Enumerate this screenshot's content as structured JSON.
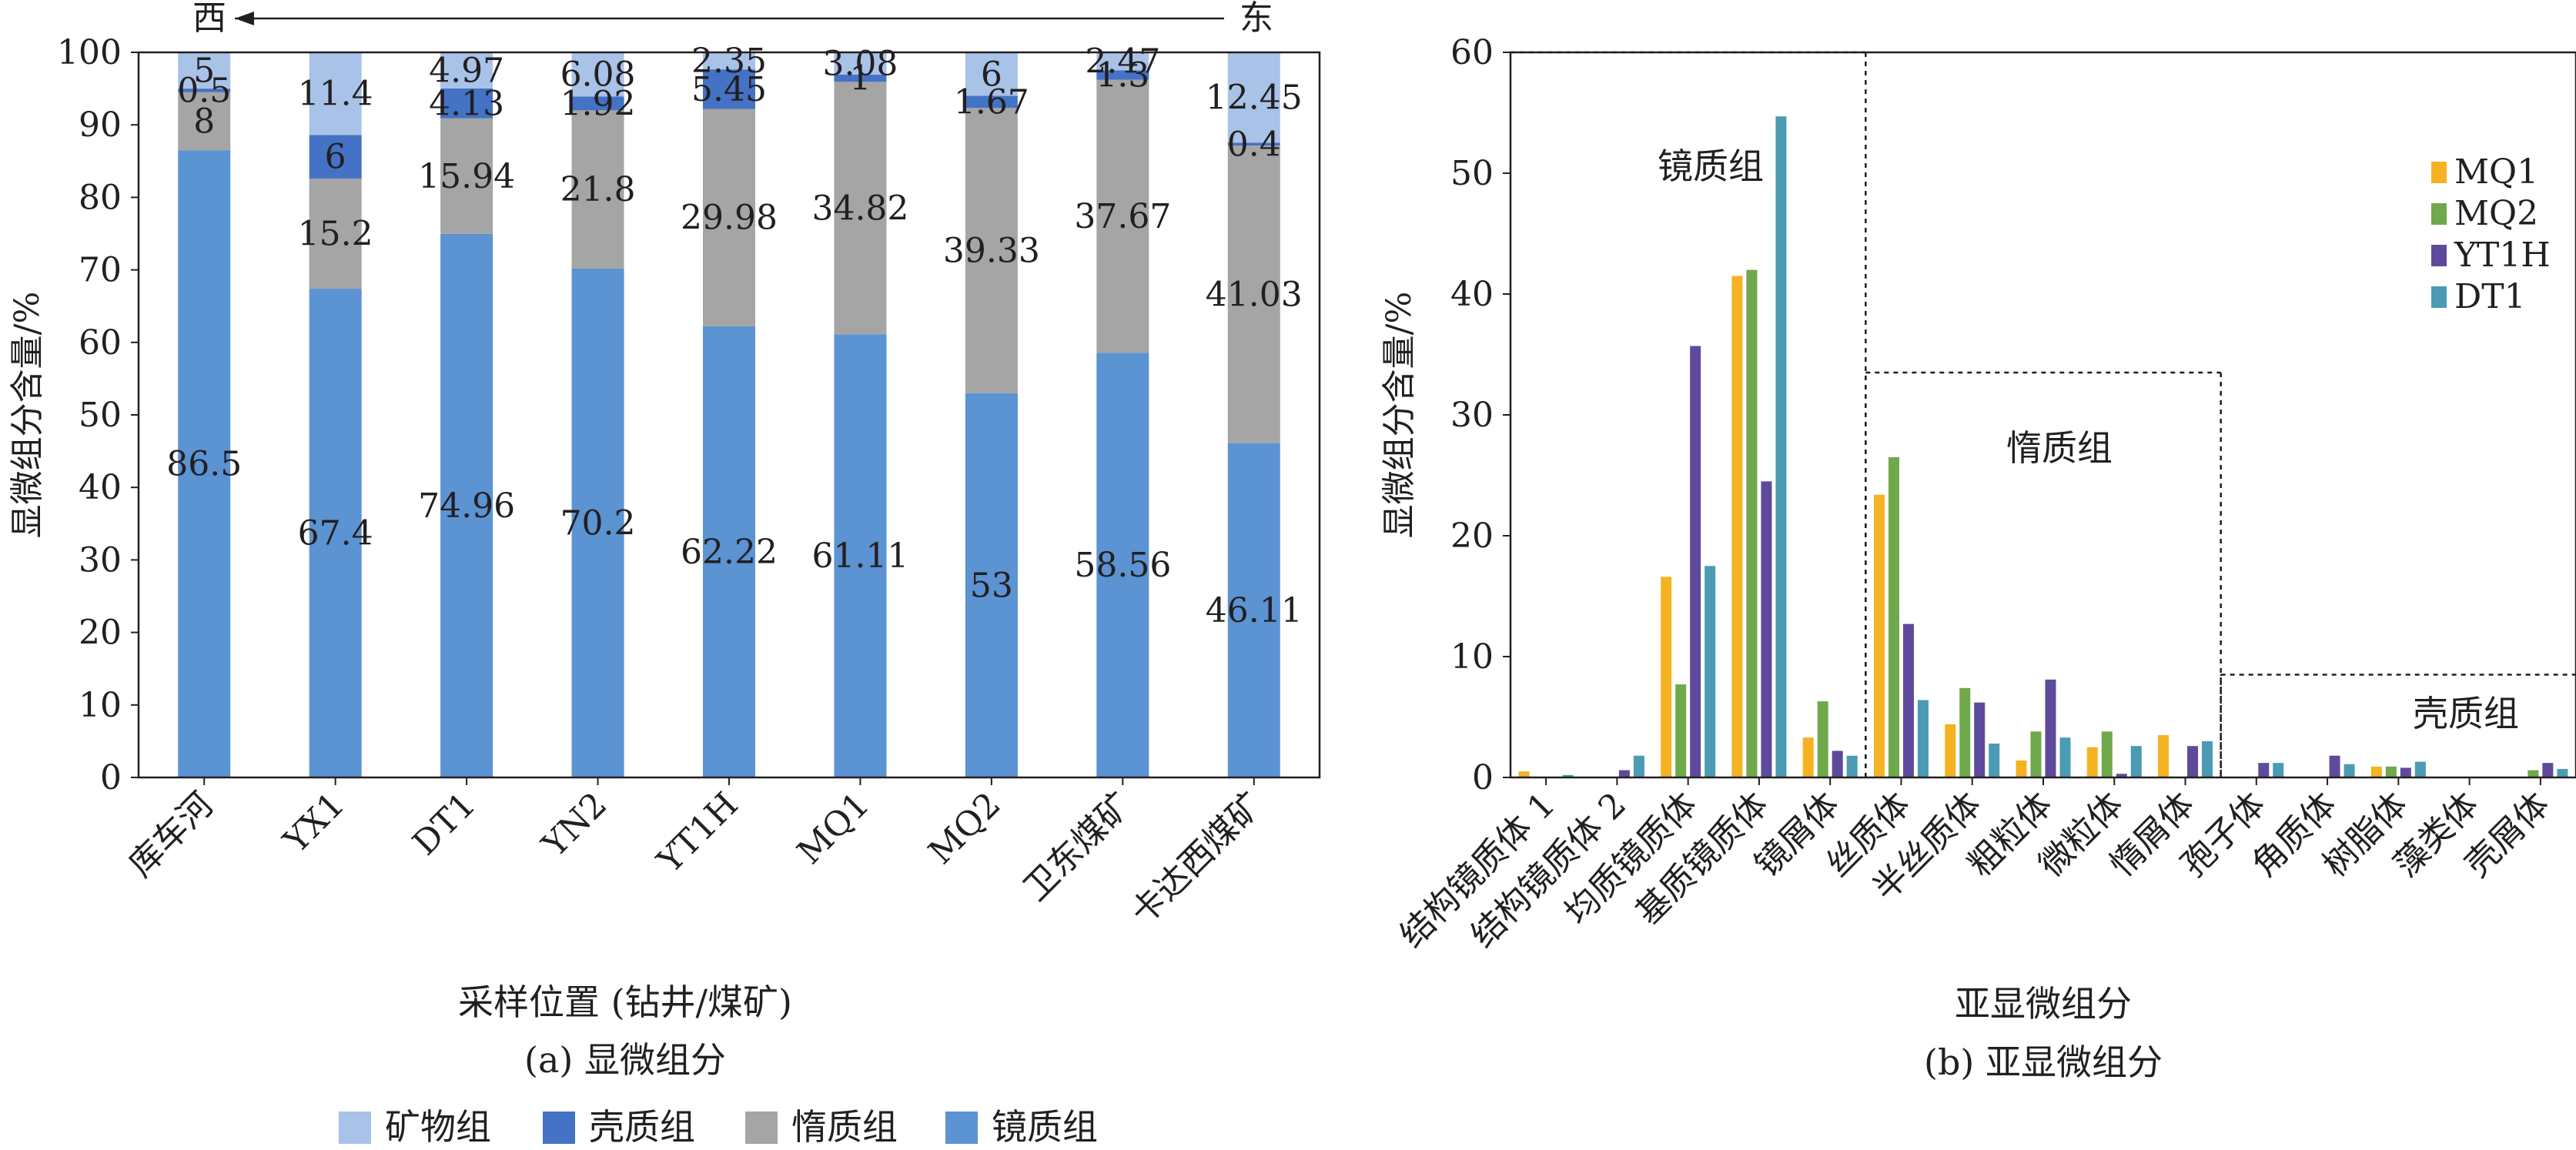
{
  "chart_data": [
    {
      "id": "a",
      "type": "bar",
      "stacked": true,
      "caption": "(a) 显微组分",
      "xlabel": "采样位置 (钻井/煤矿)",
      "ylabel": "显微组分含量/%",
      "ylim": [
        0,
        100
      ],
      "yticks": [
        0,
        10,
        20,
        30,
        40,
        50,
        60,
        70,
        80,
        90,
        100
      ],
      "categories": [
        "库车河",
        "YX1",
        "DT1",
        "YN2",
        "YT1H",
        "MQ1",
        "MQ2",
        "卫东煤矿",
        "卡达西煤矿"
      ],
      "direction": {
        "west": "西",
        "east": "东"
      },
      "series": [
        {
          "name": "镜质组",
          "color": "#5b93d3",
          "values": [
            86.5,
            67.4,
            74.96,
            70.2,
            62.22,
            61.11,
            53,
            58.56,
            46.11
          ]
        },
        {
          "name": "惰质组",
          "color": "#a5a5a5",
          "values": [
            8,
            15.2,
            15.94,
            21.8,
            29.98,
            34.82,
            39.33,
            37.67,
            41.03
          ]
        },
        {
          "name": "壳质组",
          "color": "#4472c4",
          "values": [
            0.5,
            6,
            4.13,
            1.92,
            5.45,
            1,
            1.67,
            1.3,
            0.4
          ]
        },
        {
          "name": "矿物组",
          "color": "#a9c2e8",
          "values": [
            5,
            11.4,
            4.97,
            6.08,
            2.35,
            3.08,
            6,
            2.47,
            12.45
          ]
        }
      ],
      "legend_order": [
        "矿物组",
        "壳质组",
        "惰质组",
        "镜质组"
      ],
      "legend_position": "bottom"
    },
    {
      "id": "b",
      "type": "bar",
      "stacked": false,
      "caption": "(b) 亚显微组分",
      "xlabel": "亚显微组分",
      "ylabel": "显微组分含量/%",
      "ylim": [
        0,
        60
      ],
      "yticks": [
        0,
        10,
        20,
        30,
        40,
        50,
        60
      ],
      "categories": [
        "结构镜质体 1",
        "结构镜质体 2",
        "均质镜质体",
        "基质镜质体",
        "镜屑体",
        "丝质体",
        "半丝质体",
        "粗粒体",
        "微粒体",
        "惰屑体",
        "孢子体",
        "角质体",
        "树脂体",
        "藻类体",
        "壳屑体"
      ],
      "series": [
        {
          "name": "MQ1",
          "color": "#f5b223",
          "values": [
            0.5,
            0,
            16.6,
            41.5,
            3.3,
            23.4,
            4.4,
            1.4,
            2.5,
            3.5,
            0,
            0,
            0.9,
            0,
            0
          ]
        },
        {
          "name": "MQ2",
          "color": "#70a84c",
          "values": [
            0,
            0,
            7.7,
            42.0,
            6.3,
            26.5,
            7.4,
            3.8,
            3.8,
            0,
            0,
            0,
            0.9,
            0,
            0.6
          ]
        },
        {
          "name": "YT1H",
          "color": "#5e4a9c",
          "values": [
            0,
            0.6,
            35.7,
            24.5,
            2.2,
            12.7,
            6.2,
            8.1,
            0.3,
            2.6,
            1.2,
            1.8,
            0.8,
            0,
            1.2
          ]
        },
        {
          "name": "DT1",
          "color": "#4a9bb3",
          "values": [
            0.2,
            1.8,
            17.5,
            54.7,
            1.8,
            6.4,
            2.8,
            3.3,
            2.6,
            3.0,
            1.2,
            1.1,
            1.3,
            0,
            0.7
          ]
        }
      ],
      "groups": [
        {
          "label": "镜质组",
          "from": 0,
          "to": 4,
          "top": 60
        },
        {
          "label": "惰质组",
          "from": 5,
          "to": 9,
          "top": 33.5
        },
        {
          "label": "壳质组",
          "from": 10,
          "to": 14,
          "top": 8.5
        }
      ],
      "legend_position": "top-right"
    }
  ]
}
